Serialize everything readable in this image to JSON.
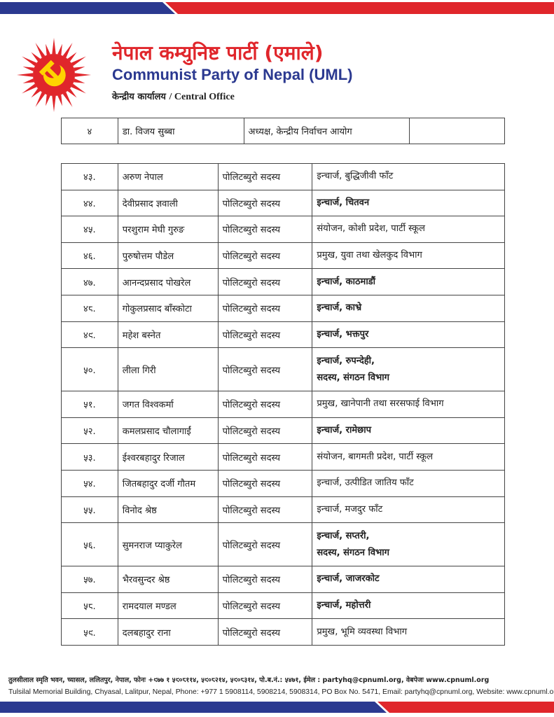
{
  "header": {
    "title_np": "नेपाल कम्युनिष्ट पार्टी (एमाले)",
    "title_en": "Communist Party of Nepal (UML)",
    "office_np": "केन्द्रीय कार्यालय",
    "office_en": "/ Central Office"
  },
  "table1": {
    "rows": [
      [
        "४",
        "डा. विजय सुब्बा",
        "अध्यक्ष, केन्द्रीय निर्वाचन आयोग"
      ]
    ]
  },
  "table2": {
    "rows": [
      {
        "no": "४३.",
        "name": "अरुण नेपाल",
        "post": "पोलिटब्युरो सदस्य",
        "role": [
          "इन्चार्ज, बुद्धिजीवी फाँट"
        ],
        "bold": false
      },
      {
        "no": "४४.",
        "name": "देवीप्रसाद ज्ञवाली",
        "post": "पोलिटब्युरो सदस्य",
        "role": [
          "इन्चार्ज, चितवन"
        ],
        "bold": true
      },
      {
        "no": "४५.",
        "name": "परशुराम मेघी गुरुङ",
        "post": "पोलिटब्युरो सदस्य",
        "role": [
          "संयोजन, कोशी प्रदेश, पार्टी स्कूल"
        ],
        "bold": false
      },
      {
        "no": "४६.",
        "name": "पुरुषोत्तम पौडेल",
        "post": "पोलिटब्युरो सदस्य",
        "role": [
          "प्रमुख, युवा तथा खेलकुद विभाग"
        ],
        "bold": false
      },
      {
        "no": "४७.",
        "name": "आनन्दप्रसाद पोखरेल",
        "post": "पोलिटब्युरो सदस्य",
        "role": [
          "इन्चार्ज, काठमाडौं"
        ],
        "bold": true
      },
      {
        "no": "४८.",
        "name": "गोकुलप्रसाद बाँस्कोटा",
        "post": "पोलिटब्युरो सदस्य",
        "role": [
          "इन्चार्ज, काभ्रे"
        ],
        "bold": true
      },
      {
        "no": "४९.",
        "name": "महेश बस्नेत",
        "post": "पोलिटब्युरो सदस्य",
        "role": [
          "इन्चार्ज, भक्तपुर"
        ],
        "bold": true
      },
      {
        "no": "५०.",
        "name": "लीला गिरी",
        "post": "पोलिटब्युरो सदस्य",
        "role": [
          "इन्चार्ज, रुपन्देही,",
          "सदस्य, संगठन विभाग"
        ],
        "bold": true
      },
      {
        "no": "५१.",
        "name": "जगत विश्वकर्मा",
        "post": "पोलिटब्युरो सदस्य",
        "role": [
          "प्रमुख, खानेपानी तथा सरसफाई विभाग"
        ],
        "bold": false
      },
      {
        "no": "५२.",
        "name": "कमलप्रसाद चौलागाईं",
        "post": "पोलिटब्युरो सदस्य",
        "role": [
          "इन्चार्ज, रामेछाप"
        ],
        "bold": true
      },
      {
        "no": "५३.",
        "name": "ईश्वरबहादुर रिजाल",
        "post": "पोलिटब्युरो सदस्य",
        "role": [
          "संयोजन, बागमती प्रदेश, पार्टी स्कूल"
        ],
        "bold": false
      },
      {
        "no": "५४.",
        "name": "जितबहादुर दर्जी गौतम",
        "post": "पोलिटब्युरो सदस्य",
        "role": [
          "इन्चार्ज, उत्पीडित जातिय फाँट"
        ],
        "bold": false
      },
      {
        "no": "५५.",
        "name": "विनोद श्रेष्ठ",
        "post": "पोलिटब्युरो सदस्य",
        "role": [
          "इन्चार्ज, मजदुर फाँट"
        ],
        "bold": false
      },
      {
        "no": "५६.",
        "name": "सुमनराज प्याकुरेल",
        "post": "पोलिटब्युरो सदस्य",
        "role": [
          "इन्चार्ज, सप्तरी,",
          "सदस्य, संगठन विभाग"
        ],
        "bold": true
      },
      {
        "no": "५७.",
        "name": "भैरवसुन्दर श्रेष्ठ",
        "post": "पोलिटब्युरो सदस्य",
        "role": [
          "इन्चार्ज, जाजरकोट"
        ],
        "bold": true
      },
      {
        "no": "५८.",
        "name": "रामदयाल मण्डल",
        "post": "पोलिटब्युरो सदस्य",
        "role": [
          "इन्चार्ज, महोत्तरी"
        ],
        "bold": true
      },
      {
        "no": "५९.",
        "name": "दलबहादुर राना",
        "post": "पोलिटब्युरो सदस्य",
        "role": [
          "प्रमुख, भूमि व्यवस्था विभाग"
        ],
        "bold": false
      }
    ]
  },
  "footer": {
    "np": "तुलसीलाल स्मृति भवन, च्यासल, ललितपुर, नेपाल, फोनः +९७७ १ ५९०८११४, ५९०८२१४, ५९०८३१४, पो.ब.नं.: ५४७१, ईमेल : partyhq@cpnuml.org, वेबपेजः www.cpnuml.org",
    "en": "Tulsilal Memorial Building, Chyasal, Lalitpur, Nepal, Phone: +977 1 5908114, 5908214, 5908314, PO Box No. 5471, Email: partyhq@cpnuml.org, Website: www.cpnuml.org"
  }
}
